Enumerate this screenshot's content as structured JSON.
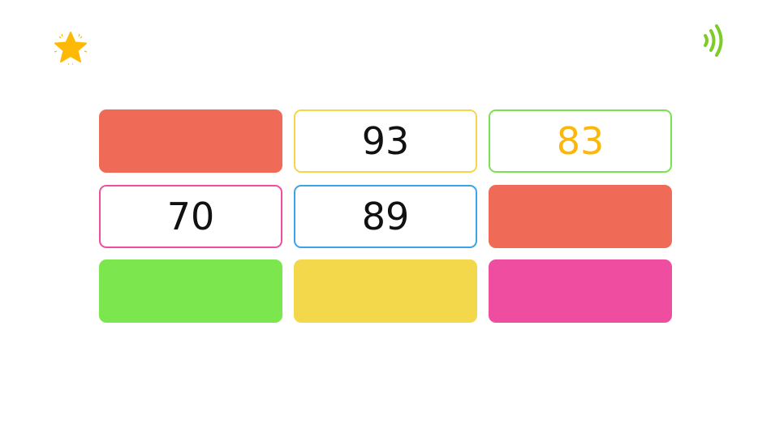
{
  "header": {
    "star_icon": "star-icon",
    "sound_icon": "sound-icon"
  },
  "cards": [
    {
      "value": "",
      "fill": "#f06a58"
    },
    {
      "value": "93",
      "border": "#f5d54a",
      "text_color": "#111111"
    },
    {
      "value": "83",
      "border": "#7be150",
      "text_color": "#fbb80a"
    },
    {
      "value": "70",
      "border": "#ef4da0",
      "text_color": "#111111"
    },
    {
      "value": "89",
      "border": "#3ba3ea",
      "text_color": "#111111"
    },
    {
      "value": "",
      "fill": "#f06a58"
    },
    {
      "value": "",
      "fill": "#7be64d"
    },
    {
      "value": "",
      "fill": "#f3d84c"
    },
    {
      "value": "",
      "fill": "#ef4ea0"
    }
  ]
}
